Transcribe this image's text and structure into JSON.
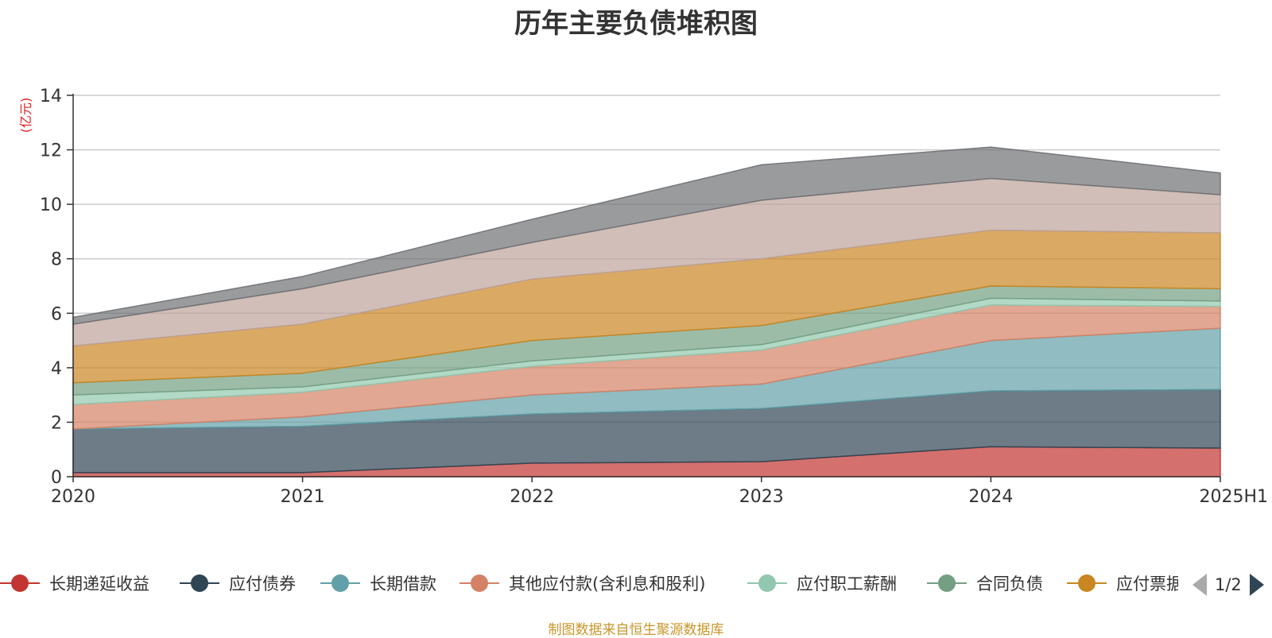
{
  "chart_data": {
    "type": "area",
    "stacked": true,
    "title": "历年主要负债堆积图",
    "ylabel": "(亿元)",
    "xlabel": "",
    "categories": [
      "2020",
      "2021",
      "2022",
      "2023",
      "2024",
      "2025H1"
    ],
    "ylim": [
      0,
      14
    ],
    "yticks": [
      "0",
      "2",
      "4",
      "6",
      "8",
      "10",
      "12",
      "14"
    ],
    "grid": true,
    "legend_position": "bottom",
    "series": [
      {
        "name": "长期递延收益",
        "color": "#c23531",
        "values": [
          0.15,
          0.15,
          0.5,
          0.55,
          1.1,
          1.05
        ]
      },
      {
        "name": "应付债券",
        "color": "#2f4554",
        "values": [
          1.6,
          1.7,
          1.8,
          1.95,
          2.05,
          2.15
        ]
      },
      {
        "name": "长期借款",
        "color": "#61a0a8",
        "values": [
          0.0,
          0.35,
          0.7,
          0.9,
          1.85,
          2.25
        ]
      },
      {
        "name": "其他应付款(含利息和股利)",
        "color": "#d48265",
        "values": [
          0.9,
          0.9,
          1.05,
          1.25,
          1.3,
          0.8
        ]
      },
      {
        "name": "应付职工薪酬",
        "color": "#91c7ae",
        "values": [
          0.35,
          0.2,
          0.2,
          0.2,
          0.25,
          0.2
        ]
      },
      {
        "name": "合同负债",
        "color": "#749f83",
        "values": [
          0.45,
          0.5,
          0.75,
          0.7,
          0.45,
          0.45
        ]
      },
      {
        "name": "应付票据",
        "color": "#ca8622",
        "values": [
          1.35,
          1.8,
          2.25,
          2.45,
          2.05,
          2.05
        ]
      },
      {
        "name": "",
        "color": "#bda29a",
        "values": [
          0.8,
          1.3,
          1.35,
          2.15,
          1.9,
          1.4
        ]
      },
      {
        "name": "",
        "color": "#6e7074",
        "values": [
          0.25,
          0.45,
          0.85,
          1.3,
          1.15,
          0.8
        ]
      }
    ]
  },
  "legend": {
    "items": [
      "长期递延收益",
      "应付债券",
      "长期借款",
      "其他应付款(含利息和股利)",
      "应付职工薪酬",
      "合同负债",
      "应付票据"
    ],
    "page": "1/2"
  },
  "source": "制图数据来自恒生聚源数据库"
}
